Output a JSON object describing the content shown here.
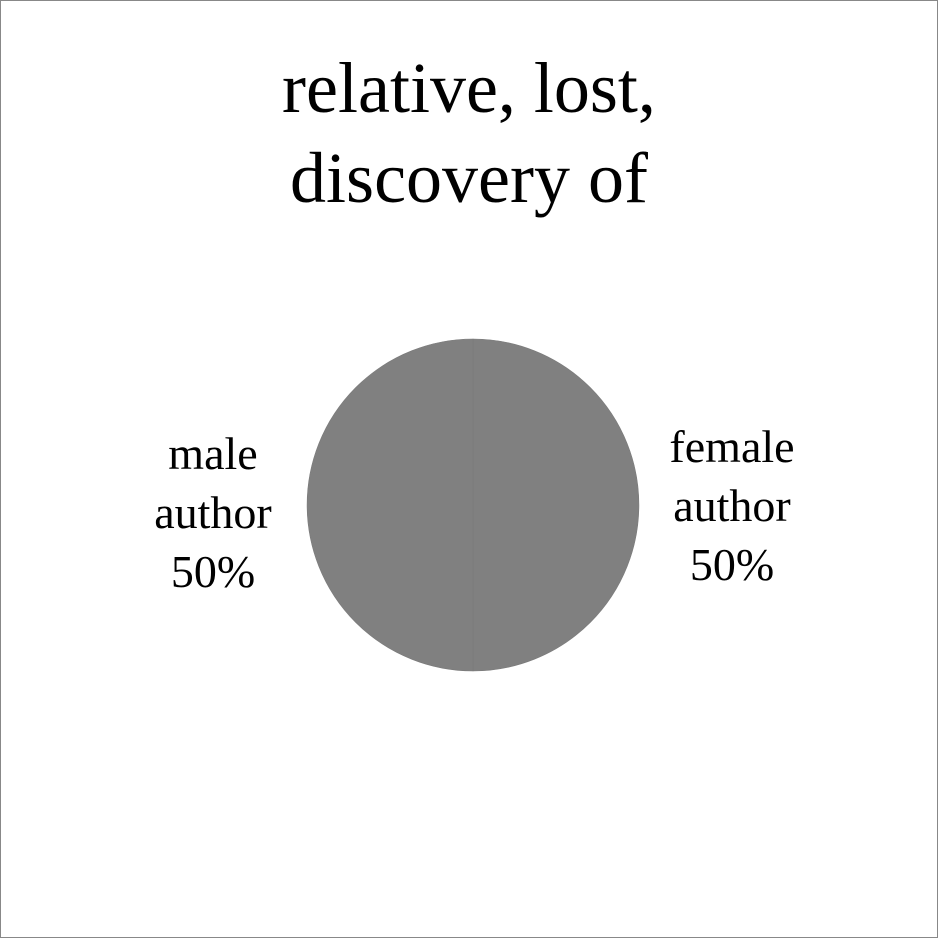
{
  "chart_data": {
    "type": "pie",
    "title_lines": [
      "relative, lost,",
      "discovery of"
    ],
    "slices": [
      {
        "name": "female author",
        "label_lines": [
          "female",
          "author",
          "50%"
        ],
        "value": 50
      },
      {
        "name": "male author",
        "label_lines": [
          "male",
          "author",
          "50%"
        ],
        "value": 50
      }
    ],
    "colors": {
      "slice_fill": "#808080",
      "slice_stroke": "#7a7a7a",
      "frame_border": "#888888"
    },
    "legend": "none"
  }
}
